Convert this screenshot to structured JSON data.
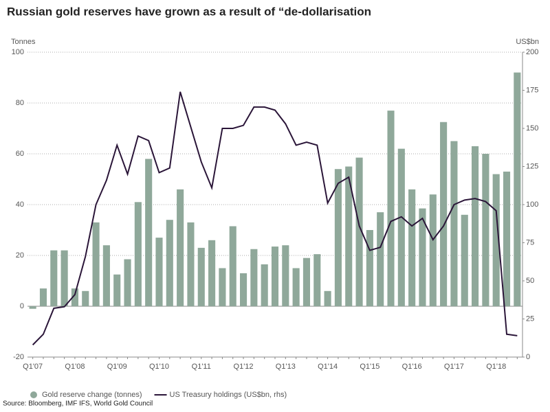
{
  "chart_data": {
    "type": "bar-line",
    "title": "Russian gold reserves have grown as a result of “de-dollarisation",
    "y_label": "Tonnes",
    "y2_label": "US$bn",
    "source": "Source: Bloomberg, IMF IFS, World Gold Council",
    "categories": [
      "Q1'07",
      null,
      null,
      null,
      "Q1'08",
      null,
      null,
      null,
      "Q1'09",
      null,
      null,
      null,
      "Q1'10",
      null,
      null,
      null,
      "Q1'11",
      null,
      null,
      null,
      "Q1'12",
      null,
      null,
      null,
      "Q1'13",
      null,
      null,
      null,
      "Q1'14",
      null,
      null,
      null,
      "Q1'15",
      null,
      null,
      null,
      "Q1'16",
      null,
      null,
      null,
      "Q1'17",
      null,
      null,
      null,
      "Q1'18",
      null,
      null
    ],
    "series": [
      {
        "name": "Gold reserve change (tonnes)",
        "type": "bar",
        "color": "#8fa89a",
        "values": [
          -1,
          7,
          22,
          22,
          7,
          6,
          33,
          24,
          12.5,
          18.5,
          41,
          58,
          27,
          34,
          46,
          33,
          23,
          26,
          15,
          31.5,
          13,
          22.5,
          16.5,
          23.5,
          24,
          15,
          19,
          20.5,
          6,
          54,
          55,
          58.5,
          30,
          37,
          77,
          62,
          46,
          38.5,
          44,
          72.5,
          65,
          36,
          63,
          60,
          52,
          53,
          92
        ]
      },
      {
        "name": "US Treasury holdings (US$bn, rhs)",
        "type": "line",
        "axis": "y2",
        "color": "#2a1538",
        "values": [
          8,
          15,
          32,
          33,
          41,
          66,
          100,
          116,
          139,
          120,
          145,
          142,
          121,
          124,
          174,
          151,
          128,
          111,
          150,
          150,
          152,
          164,
          164,
          162,
          153,
          139,
          141,
          139,
          101,
          114,
          118,
          86,
          70,
          72,
          89,
          92,
          86,
          91,
          77,
          86,
          100,
          103,
          104,
          102,
          96,
          15,
          14
        ]
      }
    ],
    "ylim": [
      -20,
      100
    ],
    "yticks": [
      -20,
      0,
      20,
      40,
      60,
      80,
      100
    ],
    "y2lim": [
      0,
      200
    ],
    "y2ticks": [
      0,
      25,
      50,
      75,
      100,
      125,
      150,
      175,
      200
    ],
    "grid": true,
    "legend": "bottom"
  }
}
